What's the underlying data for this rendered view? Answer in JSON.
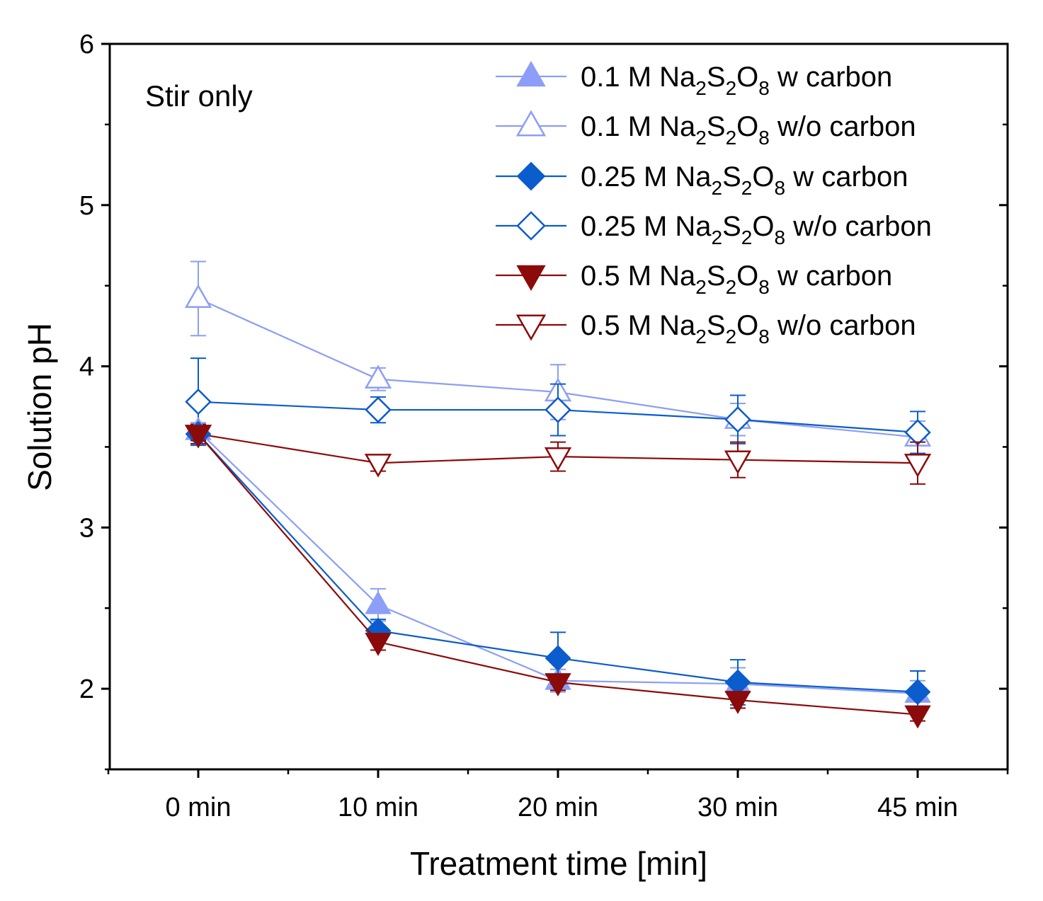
{
  "chart_data": {
    "type": "line",
    "title": "",
    "annotation": "Stir only",
    "xlabel": "Treatment time [min]",
    "ylabel": "Solution pH",
    "categories": [
      "0 min",
      "10 min",
      "20 min",
      "30 min",
      "45 min"
    ],
    "ylim": [
      1.5,
      6
    ],
    "yticks": [
      2,
      3,
      4,
      5,
      6
    ],
    "ytick_labels": [
      "2",
      "3",
      "4",
      "5",
      "6"
    ],
    "grid": false,
    "legend_position": "top-right",
    "series": [
      {
        "name": "0.1 M Na2S2O8 w carbon",
        "legend": {
          "pre": "0.1 M Na",
          "s1": "2",
          "m1": "S",
          "s2": "2",
          "m2": "O",
          "s3": "8",
          "post": " w carbon"
        },
        "color": "#8c9ef5",
        "marker": "triangle-up",
        "filled": true,
        "values": [
          3.6,
          2.52,
          2.05,
          2.03,
          1.97
        ],
        "errors": [
          0.05,
          0.1,
          0.07,
          0.1,
          0.08
        ]
      },
      {
        "name": "0.1 M Na2S2O8 w/o carbon",
        "legend": {
          "pre": "0.1 M Na",
          "s1": "2",
          "m1": "S",
          "s2": "2",
          "m2": "O",
          "s3": "8",
          "post": " w/o carbon"
        },
        "color": "#8c9ef5",
        "marker": "triangle-up",
        "filled": false,
        "values": [
          4.42,
          3.92,
          3.84,
          3.67,
          3.56
        ],
        "errors": [
          0.23,
          0.07,
          0.17,
          0.1,
          0.1
        ]
      },
      {
        "name": "0.25 M Na2S2O8 w carbon",
        "legend": {
          "pre": "0.25 M Na",
          "s1": "2",
          "m1": "S",
          "s2": "2",
          "m2": "O",
          "s3": "8",
          "post": " w carbon"
        },
        "color": "#0b5ccc",
        "marker": "diamond",
        "filled": true,
        "values": [
          3.58,
          2.36,
          2.19,
          2.04,
          1.98
        ],
        "errors": [
          0.04,
          0.07,
          0.16,
          0.14,
          0.13
        ]
      },
      {
        "name": "0.25 M Na2S2O8 w/o carbon",
        "legend": {
          "pre": "0.25 M Na",
          "s1": "2",
          "m1": "S",
          "s2": "2",
          "m2": "O",
          "s3": "8",
          "post": " w/o carbon"
        },
        "color": "#0b5ccc",
        "marker": "diamond",
        "filled": false,
        "values": [
          3.78,
          3.73,
          3.73,
          3.67,
          3.59
        ],
        "errors": [
          0.27,
          0.08,
          0.16,
          0.15,
          0.13
        ]
      },
      {
        "name": "0.5 M Na2S2O8 w carbon",
        "legend": {
          "pre": "0.5 M Na",
          "s1": "2",
          "m1": "S",
          "s2": "2",
          "m2": "O",
          "s3": "8",
          "post": " w carbon"
        },
        "color": "#8b0a0a",
        "marker": "triangle-down",
        "filled": true,
        "values": [
          3.58,
          2.29,
          2.04,
          1.93,
          1.84
        ],
        "errors": [
          0.04,
          0.05,
          0.05,
          0.05,
          0.04
        ]
      },
      {
        "name": "0.5 M Na2S2O8 w/o carbon",
        "legend": {
          "pre": "0.5 M Na",
          "s1": "2",
          "m1": "S",
          "s2": "2",
          "m2": "O",
          "s3": "8",
          "post": " w/o carbon"
        },
        "color": "#8b0a0a",
        "marker": "triangle-down",
        "filled": false,
        "values": [
          3.58,
          3.4,
          3.44,
          3.42,
          3.4
        ],
        "errors": [
          0.06,
          0.05,
          0.09,
          0.11,
          0.13
        ]
      }
    ]
  }
}
